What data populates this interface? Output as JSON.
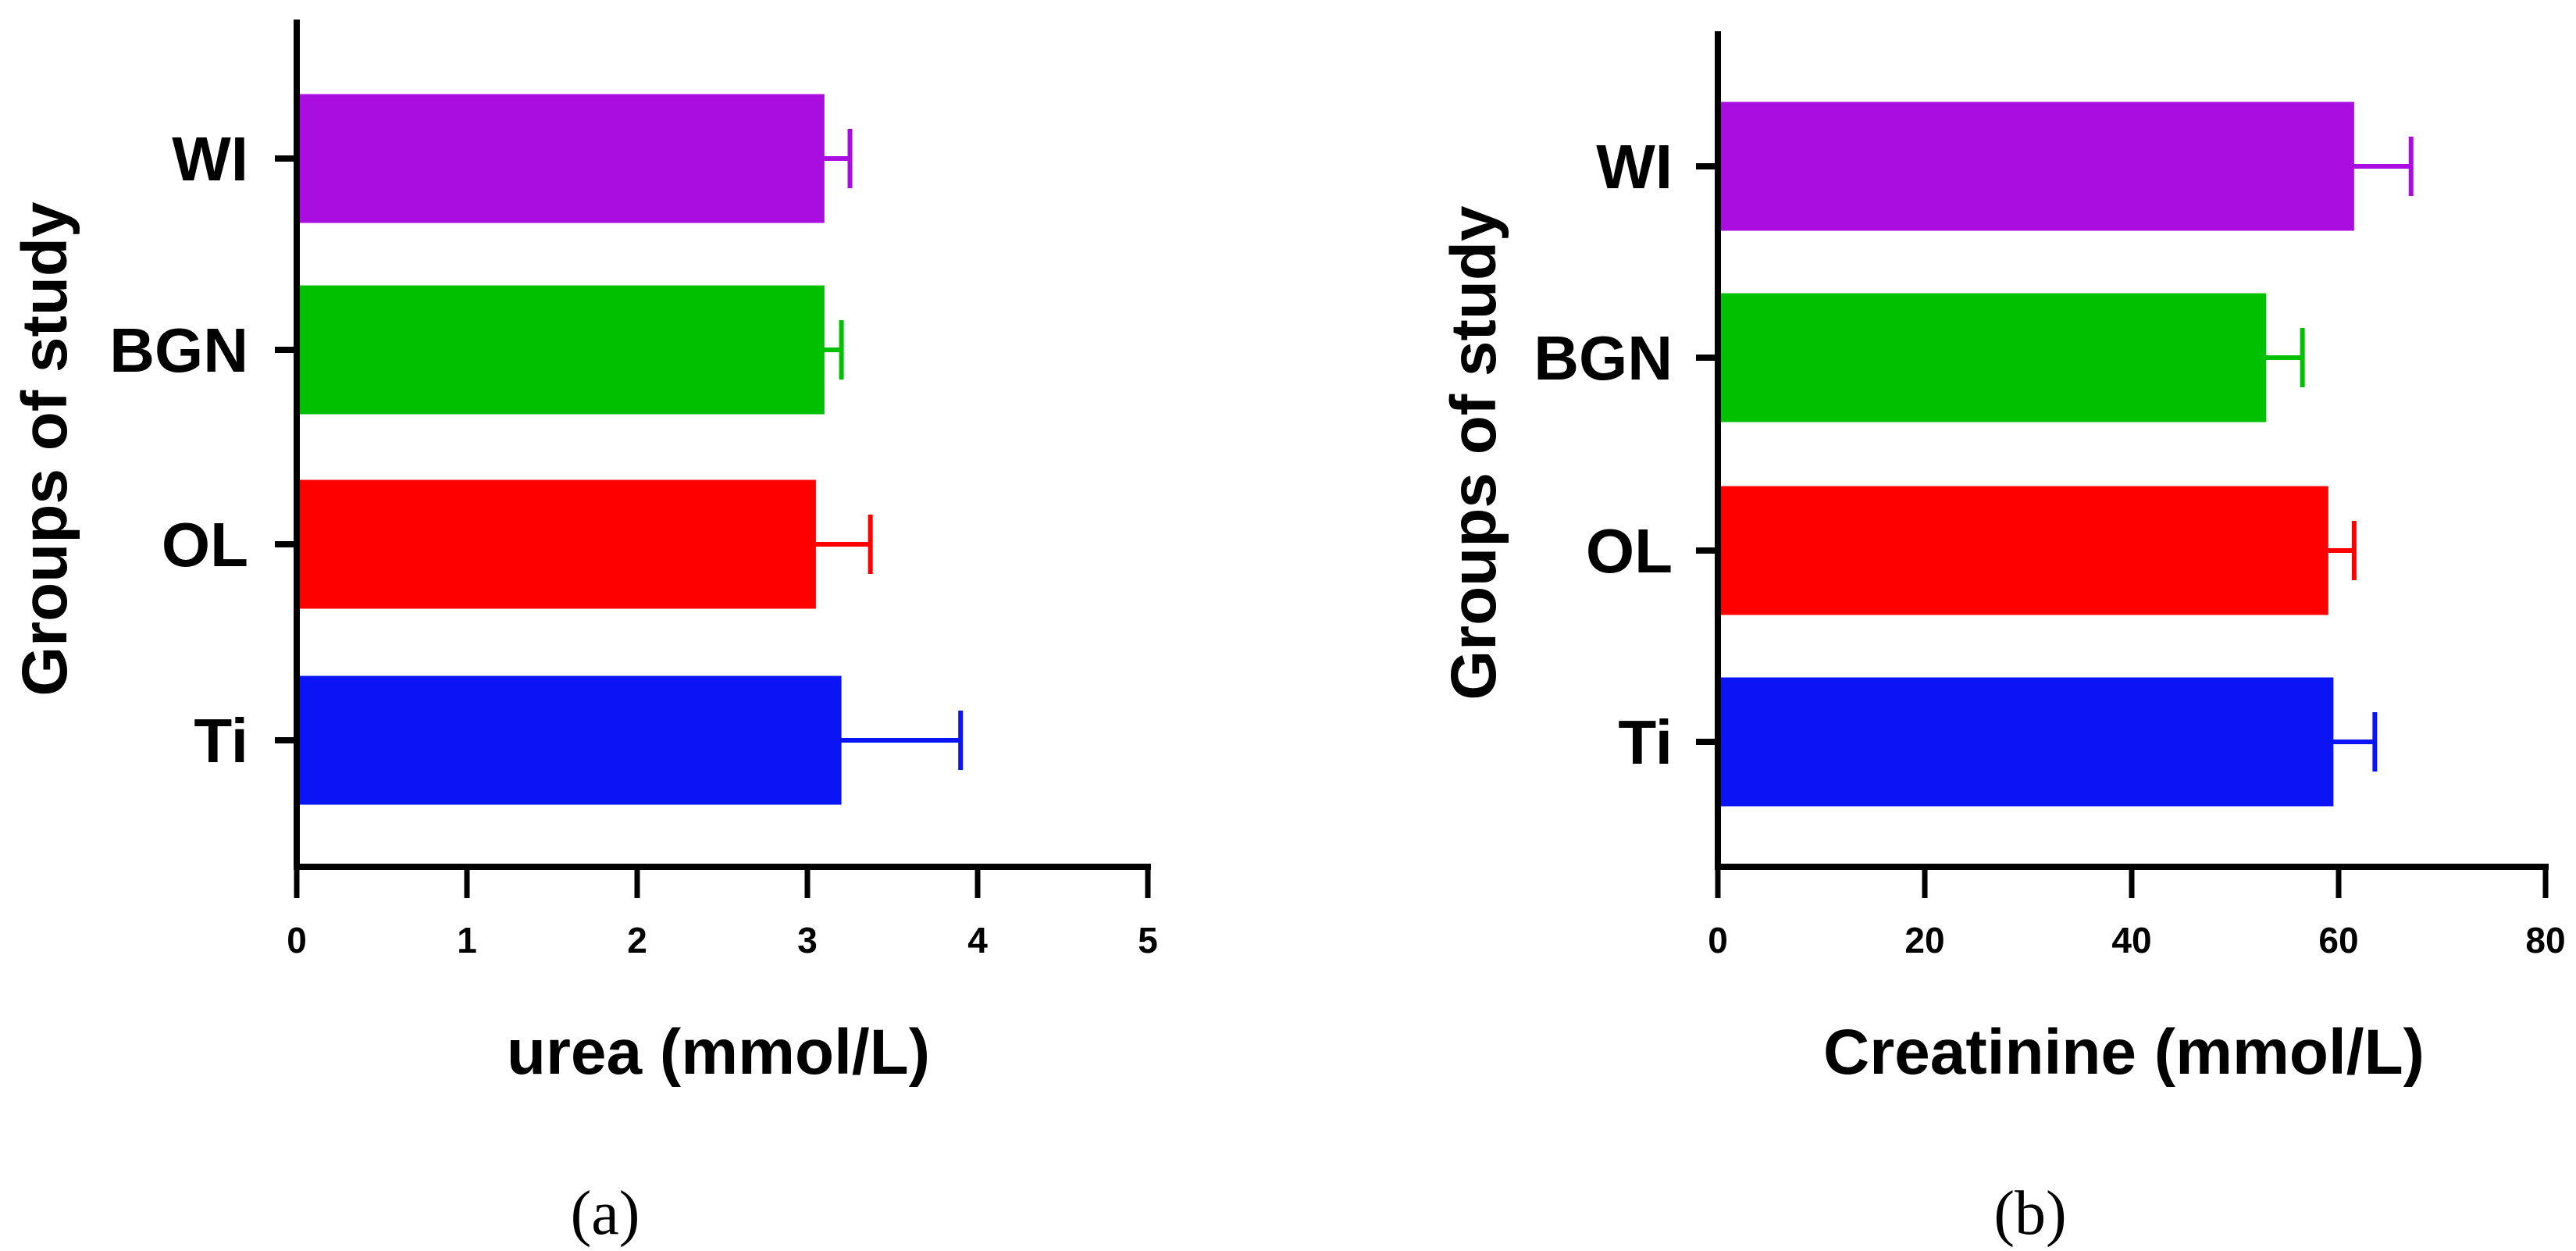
{
  "chart_data": [
    {
      "type": "bar",
      "orientation": "horizontal",
      "panel_label": "(a)",
      "categories": [
        "WI",
        "BGN",
        "OL",
        "Ti"
      ],
      "values": [
        3.1,
        3.1,
        3.05,
        3.2
      ],
      "errors": [
        0.15,
        0.1,
        0.32,
        0.7
      ],
      "colors": [
        "#AA0DE0",
        "#00C000",
        "#FF0000",
        "#0A14F5"
      ],
      "xlabel": "urea (mmol/L)",
      "ylabel": "Groups of study",
      "xlim": [
        0,
        5
      ],
      "xticks": [
        0,
        1,
        2,
        3,
        4,
        5
      ],
      "grid": false
    },
    {
      "type": "bar",
      "orientation": "horizontal",
      "panel_label": "(b)",
      "categories": [
        "WI",
        "BGN",
        "OL",
        "Ti"
      ],
      "values": [
        61.5,
        53,
        59,
        59.5
      ],
      "errors": [
        5.5,
        3.5,
        2.5,
        4
      ],
      "colors": [
        "#AA0DE0",
        "#00C000",
        "#FF0000",
        "#0A14F5"
      ],
      "xlabel": "Creatinine (mmol/L)",
      "ylabel": "Groups of study",
      "xlim": [
        0,
        80
      ],
      "xticks": [
        0,
        20,
        40,
        60,
        80
      ],
      "grid": false
    }
  ]
}
